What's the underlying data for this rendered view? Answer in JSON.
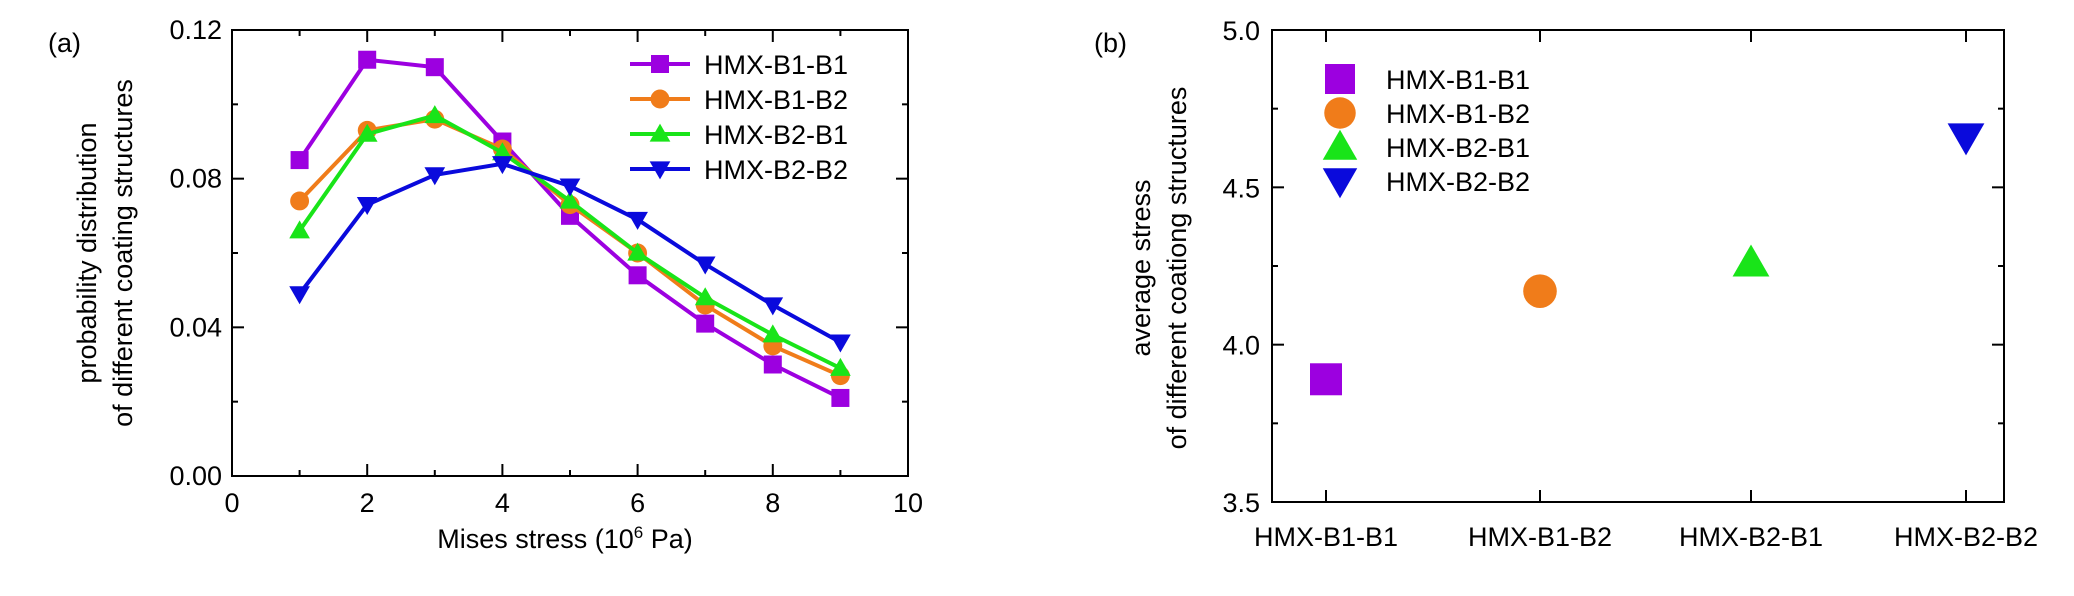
{
  "colors": {
    "HMX-B1-B1": "#9c00e0",
    "HMX-B1-B2": "#f07c1a",
    "HMX-B2-B1": "#19e419",
    "HMX-B2-B2": "#0a0adc"
  },
  "markers": {
    "HMX-B1-B1": "square",
    "HMX-B1-B2": "circle",
    "HMX-B2-B1": "triangle-up",
    "HMX-B2-B2": "triangle-down"
  },
  "chart_data": [
    {
      "panel_label": "(a)",
      "type": "line",
      "xlabel_main": "Mises stress (10",
      "xlabel_sup": "6",
      "xlabel_end": " Pa)",
      "ylabel_line1": "probability distribution",
      "ylabel_line2": "of different coating structures",
      "xlim": [
        0,
        10
      ],
      "ylim": [
        0,
        0.12
      ],
      "x_ticks": [
        "0",
        "2",
        "4",
        "6",
        "8",
        "10"
      ],
      "y_ticks": [
        "0.00",
        "0.04",
        "0.08",
        "0.12"
      ],
      "grid": false,
      "legend_position": "top-right",
      "x": [
        1,
        2,
        3,
        4,
        5,
        6,
        7,
        8,
        9
      ],
      "series": [
        {
          "name": "HMX-B1-B1",
          "values": [
            0.085,
            0.112,
            0.11,
            0.09,
            0.07,
            0.054,
            0.041,
            0.03,
            0.021
          ]
        },
        {
          "name": "HMX-B1-B2",
          "values": [
            0.074,
            0.093,
            0.096,
            0.088,
            0.073,
            0.06,
            0.046,
            0.035,
            0.027
          ]
        },
        {
          "name": "HMX-B2-B1",
          "values": [
            0.066,
            0.092,
            0.097,
            0.087,
            0.074,
            0.06,
            0.048,
            0.038,
            0.029
          ]
        },
        {
          "name": "HMX-B2-B2",
          "values": [
            0.049,
            0.073,
            0.081,
            0.084,
            0.078,
            0.069,
            0.057,
            0.046,
            0.036
          ]
        }
      ]
    },
    {
      "panel_label": "(b)",
      "type": "scatter",
      "ylabel_line1": "average stress",
      "ylabel_line2": "of different coationg structures",
      "ylim": [
        3.5,
        5.0
      ],
      "y_ticks": [
        "3.5",
        "4.0",
        "4.5",
        "5.0"
      ],
      "categories": [
        "HMX-B1-B1",
        "HMX-B1-B2",
        "HMX-B2-B1",
        "HMX-B2-B2"
      ],
      "grid": false,
      "legend_position": "top-left",
      "series": [
        {
          "name": "HMX-B1-B1",
          "values": [
            3.89
          ]
        },
        {
          "name": "HMX-B1-B2",
          "values": [
            4.17
          ]
        },
        {
          "name": "HMX-B2-B1",
          "values": [
            4.26
          ]
        },
        {
          "name": "HMX-B2-B2",
          "values": [
            4.66
          ]
        }
      ]
    }
  ]
}
